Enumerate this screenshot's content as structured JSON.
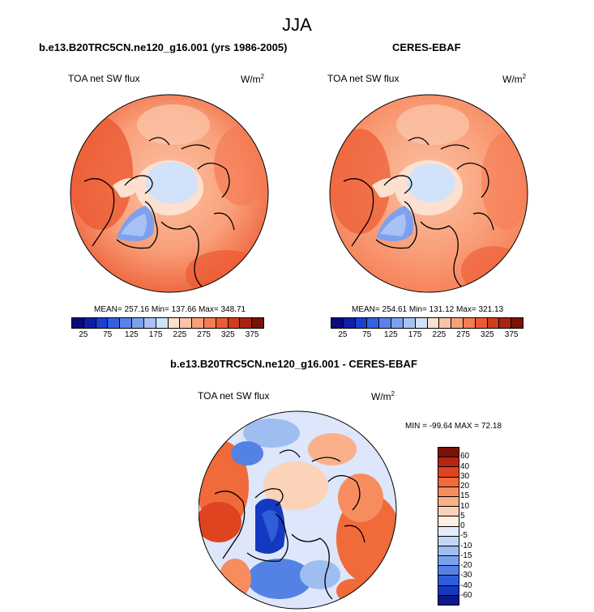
{
  "figure": {
    "title": "JJA",
    "panel1": {
      "title": "b.e13.B20TRC5CN.ne120_g16.001 (yrs 1986-2005)",
      "var_label": "TOA net SW flux",
      "unit": "W/m",
      "unit_sup": "2",
      "stats": "MEAN= 257.16  Min= 137.66  Max= 348.71"
    },
    "panel2": {
      "title": "CERES-EBAF",
      "var_label": "TOA net SW flux",
      "unit": "W/m",
      "unit_sup": "2",
      "stats": "MEAN= 254.61  Min= 131.12  Max= 321.13"
    },
    "panel3": {
      "title": "b.e13.B20TRC5CN.ne120_g16.001 - CERES-EBAF",
      "var_label": "TOA net SW flux",
      "unit": "W/m",
      "unit_sup": "2",
      "stats": "MIN = -99.64 MAX =  72.18"
    }
  },
  "chart_data": [
    {
      "type": "heatmap",
      "title": "b.e13.B20TRC5CN.ne120_g16.001 (yrs 1986-2005)",
      "projection": "polar-stereographic-north",
      "variable": "TOA net SW flux",
      "units": "W/m2",
      "mean": 257.16,
      "min": 137.66,
      "max": 348.71,
      "colorbar_levels": [
        25,
        50,
        75,
        100,
        125,
        150,
        175,
        200,
        225,
        250,
        275,
        300,
        325,
        350,
        375
      ],
      "colorbar_tick_labels": [
        "25",
        "75",
        "125",
        "175",
        "225",
        "275",
        "325",
        "375"
      ],
      "colorbar_colors": [
        "#0a0a7a",
        "#0e1ea8",
        "#1b3fd0",
        "#3560e0",
        "#5a82ea",
        "#7fa0ef",
        "#a8c2f4",
        "#d2e2fa",
        "#fde0cf",
        "#fbc3a6",
        "#f9a07a",
        "#f57c54",
        "#ec5a32",
        "#d13c1c",
        "#a82310",
        "#7a1205"
      ]
    },
    {
      "type": "heatmap",
      "title": "CERES-EBAF",
      "projection": "polar-stereographic-north",
      "variable": "TOA net SW flux",
      "units": "W/m2",
      "mean": 254.61,
      "min": 131.12,
      "max": 321.13,
      "colorbar_levels": [
        25,
        50,
        75,
        100,
        125,
        150,
        175,
        200,
        225,
        250,
        275,
        300,
        325,
        350,
        375
      ],
      "colorbar_tick_labels": [
        "25",
        "75",
        "125",
        "175",
        "225",
        "275",
        "325",
        "375"
      ],
      "colorbar_colors": [
        "#0a0a7a",
        "#0e1ea8",
        "#1b3fd0",
        "#3560e0",
        "#5a82ea",
        "#7fa0ef",
        "#a8c2f4",
        "#d2e2fa",
        "#fde0cf",
        "#fbc3a6",
        "#f9a07a",
        "#f57c54",
        "#ec5a32",
        "#d13c1c",
        "#a82310",
        "#7a1205"
      ]
    },
    {
      "type": "heatmap",
      "title": "b.e13.B20TRC5CN.ne120_g16.001 - CERES-EBAF",
      "projection": "polar-stereographic-north",
      "variable": "TOA net SW flux",
      "units": "W/m2",
      "min": -99.64,
      "max": 72.18,
      "colorbar_levels": [
        -60,
        -40,
        -30,
        -20,
        -15,
        -10,
        -5,
        0,
        5,
        10,
        15,
        20,
        30,
        40,
        60
      ],
      "colorbar_tick_labels": [
        "60",
        "40",
        "30",
        "20",
        "15",
        "10",
        "5",
        "0",
        "-5",
        "-10",
        "-15",
        "-20",
        "-30",
        "-40",
        "-60"
      ],
      "colorbar_colors_top_to_bottom": [
        "#7a1205",
        "#b8250f",
        "#de4420",
        "#f06a3a",
        "#f78d5e",
        "#fab08a",
        "#fcd2b8",
        "#fdeee4",
        "#e4ecfa",
        "#c2d6f6",
        "#9ebdf1",
        "#7aa2ec",
        "#5482e4",
        "#2f5ed8",
        "#1538c0",
        "#0a1a8a"
      ]
    }
  ]
}
